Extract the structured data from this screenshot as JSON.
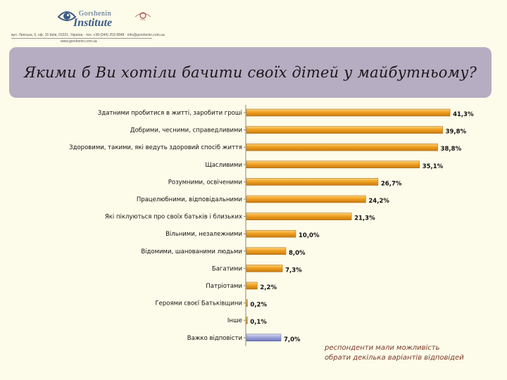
{
  "header": {
    "logo_line1": "Gorshenin",
    "logo_line2": "Institute",
    "address_line1": "вул. Липська, 5, оф. 15 Київ, 01021, Україна · тел. +38 (044) 253-9848 · info@gorshenin.com.ua",
    "address_line2": "www.gorshenin.com.ua"
  },
  "title": "Якими б Ви хотіли бачити своїх дітей у майбутньому?",
  "note": {
    "line1": "респонденти мали можливість",
    "line2": "обрати декілька варіантів відповідей"
  },
  "colors": {
    "bar_main": "#f0a020",
    "bar_main_light": "#fbd27a",
    "bar_other": "#9aa0d6",
    "title_bg": "#b7adc2",
    "background": "#fdfbe9"
  },
  "chart_data": {
    "type": "bar",
    "orientation": "horizontal",
    "categories": [
      "Здатними пробитися в житті, заробити гроші",
      "Добрими, чесними, справедливими",
      "Здоровими, такими, які ведуть здоровий спосіб життя",
      "Щасливими",
      "Розумними, освіченими",
      "Працелюбними, відповідальними",
      "Які піклуються про своїх батьків і близьких",
      "Вільними, незалежними",
      "Відомими, шанованими людьми",
      "Багатими",
      "Патріотами",
      "Героями своєї Батьківщини",
      "Інше",
      "Важко відповісти"
    ],
    "values": [
      41.3,
      39.8,
      38.8,
      35.1,
      26.7,
      24.2,
      21.3,
      10.0,
      8.0,
      7.3,
      2.2,
      0.2,
      0.1,
      7.0
    ],
    "value_labels": [
      "41,3%",
      "39,8%",
      "38,8%",
      "35,1%",
      "26,7%",
      "24,2%",
      "21,3%",
      "10,0%",
      "8,0%",
      "7,3%",
      "2,2%",
      "0,2%",
      "0,1%",
      "7,0%"
    ],
    "highlight_last": true,
    "xlim": [
      0,
      45
    ],
    "grid": false,
    "legend": "none"
  }
}
